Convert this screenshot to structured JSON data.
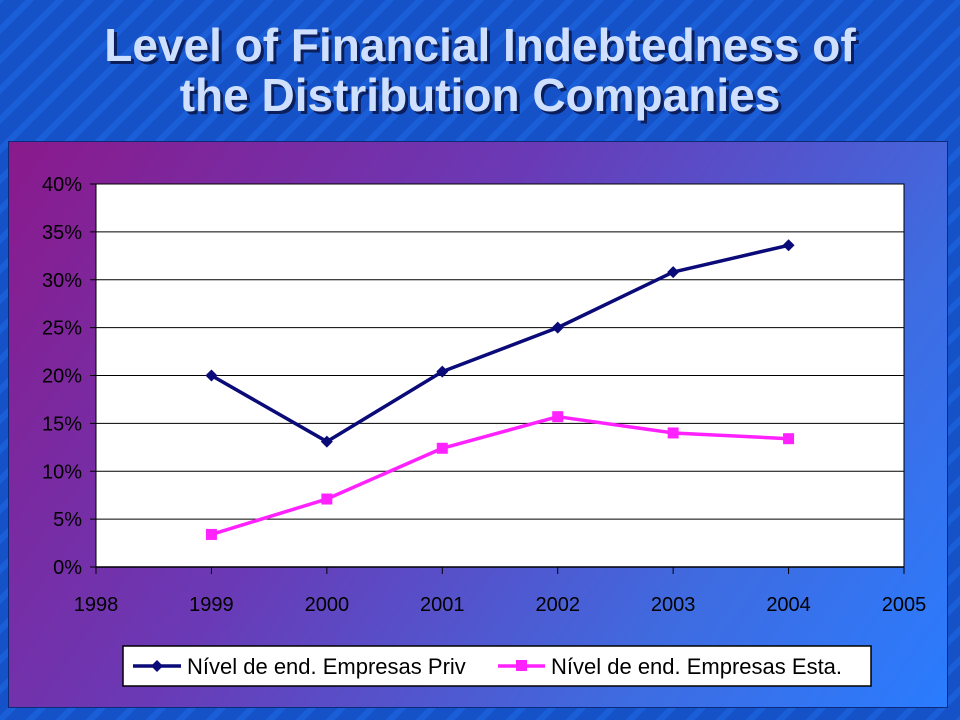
{
  "title": {
    "line1": "Level of Financial Indebtedness of",
    "line2": "the Distribution Companies"
  },
  "colors": {
    "series_priv": "#0a0a78",
    "series_esta": "#ff22ff",
    "title_text": "#cfe0ff",
    "plot_bg": "#ffffff"
  },
  "chart_data": {
    "type": "line",
    "title": "",
    "xlabel": "",
    "ylabel": "",
    "x": [
      1998,
      1999,
      2000,
      2001,
      2002,
      2003,
      2004,
      2005
    ],
    "x_tick_labels": [
      "1998",
      "1999",
      "2000",
      "2001",
      "2002",
      "2003",
      "2004",
      "2005"
    ],
    "xlim": [
      1998,
      2005
    ],
    "y_tick_labels": [
      "0%",
      "5%",
      "10%",
      "15%",
      "20%",
      "25%",
      "30%",
      "35%",
      "40%"
    ],
    "y_ticks": [
      0,
      5,
      10,
      15,
      20,
      25,
      30,
      35,
      40
    ],
    "ylim": [
      0,
      40
    ],
    "grid": "horizontal",
    "legend_position": "bottom",
    "series": [
      {
        "name": "Nível de end. Empresas Priv",
        "x": [
          1999,
          2000,
          2001,
          2002,
          2003,
          2004
        ],
        "values": [
          20,
          13.1,
          20.4,
          25,
          30.8,
          33.6
        ],
        "marker": "diamond",
        "color": "#0a0a78"
      },
      {
        "name": "Nível de end. Empresas Esta.",
        "x": [
          1999,
          2000,
          2001,
          2002,
          2003,
          2004
        ],
        "values": [
          3.4,
          7.1,
          12.4,
          15.7,
          14,
          13.4
        ],
        "marker": "square",
        "color": "#ff22ff"
      }
    ]
  }
}
